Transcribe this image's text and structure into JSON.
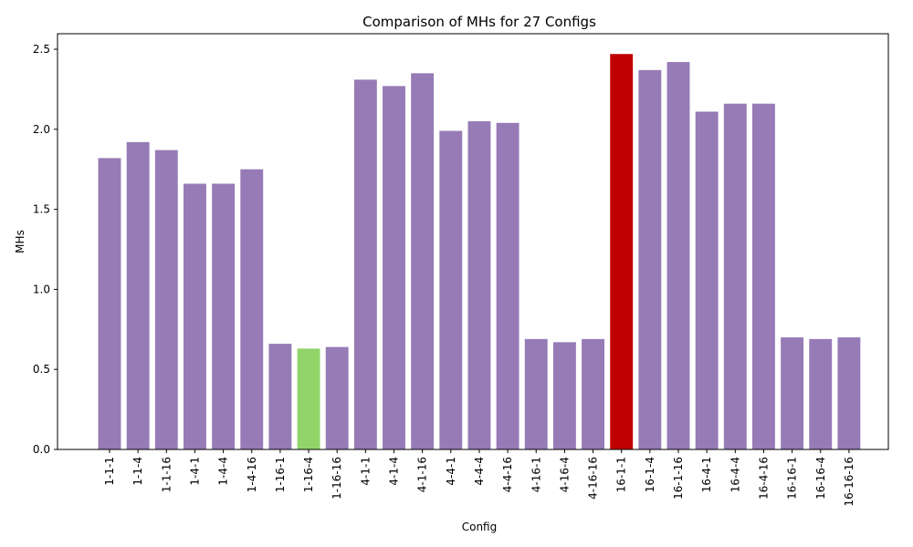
{
  "chart_data": {
    "type": "bar",
    "title": "Comparison of MHs for 27 Configs",
    "xlabel": "Config",
    "ylabel": "MHs",
    "ylim": [
      0,
      2.5
    ],
    "yticks": [
      "0.0",
      "0.5",
      "1.0",
      "1.5",
      "2.0",
      "2.5"
    ],
    "grid": false,
    "categories": [
      "1-1-1",
      "1-1-4",
      "1-1-16",
      "1-4-1",
      "1-4-4",
      "1-4-16",
      "1-16-1",
      "1-16-4",
      "1-16-16",
      "4-1-1",
      "4-1-4",
      "4-1-16",
      "4-4-1",
      "4-4-4",
      "4-4-16",
      "4-16-1",
      "4-16-4",
      "4-16-16",
      "16-1-1",
      "16-1-4",
      "16-1-16",
      "16-4-1",
      "16-4-4",
      "16-4-16",
      "16-16-1",
      "16-16-4",
      "16-16-16"
    ],
    "values": [
      1.82,
      1.92,
      1.87,
      1.66,
      1.66,
      1.75,
      0.66,
      0.63,
      0.64,
      2.31,
      2.27,
      2.35,
      1.99,
      2.05,
      2.04,
      0.69,
      0.67,
      0.69,
      2.47,
      2.37,
      2.42,
      2.11,
      2.16,
      2.16,
      0.7,
      0.69,
      0.7
    ],
    "colors": {
      "default": "#967bb6",
      "max": "#c00000",
      "min": "#90d46a"
    },
    "highlight": {
      "max_category": "16-1-1",
      "min_category": "1-16-4"
    }
  }
}
